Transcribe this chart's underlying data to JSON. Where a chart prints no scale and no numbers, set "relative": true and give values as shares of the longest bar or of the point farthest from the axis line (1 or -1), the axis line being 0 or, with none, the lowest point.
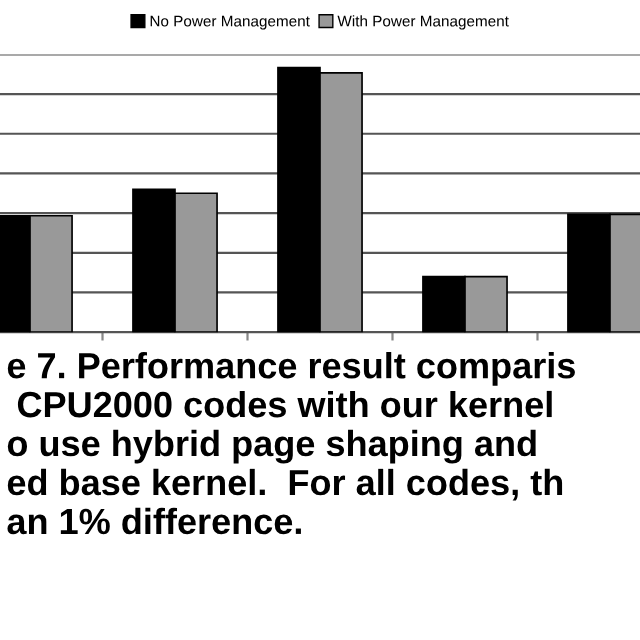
{
  "chart_data": {
    "type": "bar",
    "relative": true,
    "categories": [
      null,
      null,
      null,
      null,
      null
    ],
    "series": [
      {
        "name": "No Power Management",
        "color": "#000000",
        "values": [
          0.44,
          0.54,
          1,
          0.21,
          0.445
        ]
      },
      {
        "name": "With Power Management",
        "color": "#999999",
        "values": [
          0.44,
          0.525,
          0.98,
          0.21,
          0.445
        ]
      }
    ],
    "grid": "y",
    "legend": "top",
    "annotations": [
      "e 7. Performance result comparis\n CPU2000 codes with our kernel\no use hybrid page shaping and\ned base kernel.  For all codes, th\nan 1% difference."
    ]
  }
}
